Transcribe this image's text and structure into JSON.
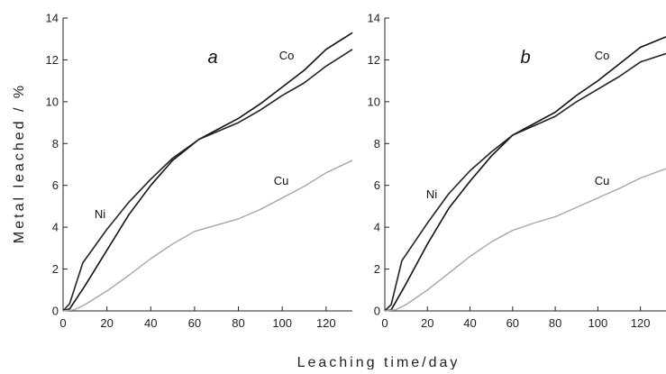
{
  "chart_data": [
    {
      "type": "line",
      "panel_label": "a",
      "xlim": [
        0,
        132
      ],
      "ylim": [
        0,
        14
      ],
      "xticks": [
        "0",
        "20",
        "40",
        "60",
        "80",
        "100",
        "120"
      ],
      "yticks": [
        "0",
        "2",
        "4",
        "6",
        "8",
        "10",
        "12",
        "14"
      ],
      "series": [
        {
          "name": "Co",
          "color": "#111111",
          "x": [
            0,
            3,
            10,
            20,
            30,
            40,
            50,
            62,
            80,
            90,
            100,
            110,
            120,
            132
          ],
          "y": [
            0,
            0.1,
            1.2,
            2.9,
            4.6,
            6.0,
            7.2,
            8.2,
            9.2,
            9.9,
            10.7,
            11.5,
            12.5,
            13.3
          ]
        },
        {
          "name": "Ni",
          "color": "#222222",
          "x": [
            0,
            3,
            9,
            20,
            30,
            40,
            50,
            62,
            80,
            90,
            100,
            110,
            120,
            132
          ],
          "y": [
            0,
            0.35,
            2.3,
            3.9,
            5.2,
            6.3,
            7.3,
            8.2,
            9.0,
            9.6,
            10.3,
            10.9,
            11.7,
            12.5
          ]
        },
        {
          "name": "Cu",
          "color": "#a6a6a6",
          "x": [
            0,
            5,
            10,
            20,
            30,
            40,
            50,
            60,
            70,
            80,
            90,
            100,
            110,
            120,
            132
          ],
          "y": [
            0,
            0.05,
            0.3,
            0.95,
            1.7,
            2.5,
            3.2,
            3.8,
            4.1,
            4.4,
            4.85,
            5.4,
            5.95,
            6.6,
            7.2
          ]
        }
      ]
    },
    {
      "type": "line",
      "panel_label": "b",
      "xlim": [
        0,
        132
      ],
      "ylim": [
        0,
        14
      ],
      "xticks": [
        "0",
        "20",
        "40",
        "60",
        "80",
        "100",
        "120"
      ],
      "yticks": [
        "0",
        "2",
        "4",
        "6",
        "8",
        "10",
        "12",
        "14"
      ],
      "series": [
        {
          "name": "Co",
          "color": "#111111",
          "x": [
            0,
            3,
            10,
            20,
            30,
            40,
            50,
            60,
            80,
            90,
            100,
            110,
            120,
            132
          ],
          "y": [
            0,
            0.05,
            1.3,
            3.2,
            4.9,
            6.2,
            7.4,
            8.4,
            9.5,
            10.3,
            11.0,
            11.8,
            12.6,
            13.1
          ]
        },
        {
          "name": "Ni",
          "color": "#222222",
          "x": [
            0,
            3,
            8,
            20,
            30,
            40,
            50,
            60,
            80,
            90,
            100,
            110,
            120,
            132
          ],
          "y": [
            0,
            0.3,
            2.4,
            4.2,
            5.6,
            6.7,
            7.6,
            8.4,
            9.3,
            10.0,
            10.6,
            11.2,
            11.9,
            12.3
          ]
        },
        {
          "name": "Cu",
          "color": "#a6a6a6",
          "x": [
            0,
            5,
            10,
            20,
            30,
            40,
            50,
            60,
            70,
            80,
            90,
            100,
            110,
            120,
            132
          ],
          "y": [
            0,
            0.05,
            0.3,
            1.0,
            1.8,
            2.6,
            3.3,
            3.85,
            4.2,
            4.5,
            4.95,
            5.4,
            5.85,
            6.35,
            6.8
          ]
        }
      ]
    }
  ],
  "axes": {
    "ylabel": "Metal leached / %",
    "xlabel": "Leaching time/day"
  }
}
